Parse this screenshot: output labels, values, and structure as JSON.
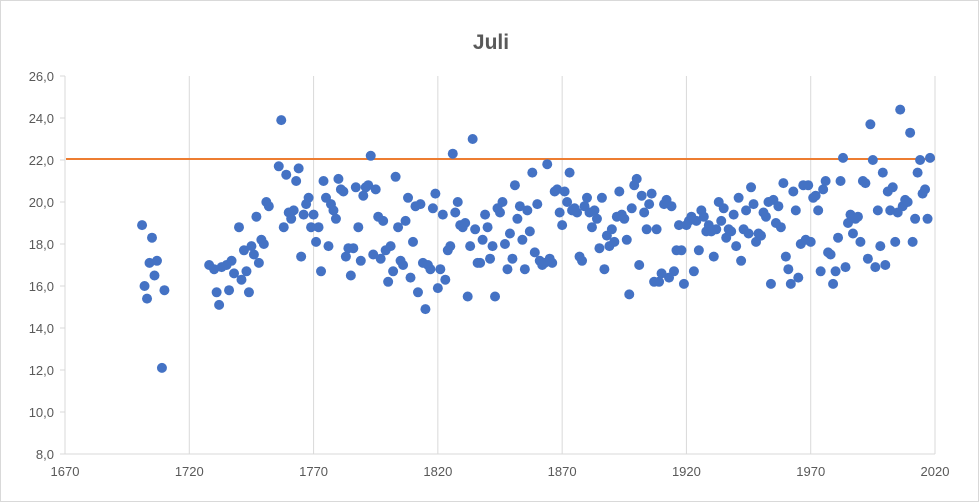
{
  "chart_data": {
    "type": "scatter",
    "title": "Juli",
    "xlabel": "",
    "ylabel": "",
    "xlim": [
      1670,
      2020
    ],
    "ylim": [
      8,
      26
    ],
    "x_ticks": [
      "1670",
      "1720",
      "1770",
      "1820",
      "1870",
      "1920",
      "1970",
      "2020"
    ],
    "y_ticks": [
      "8,0",
      "10,0",
      "12,0",
      "14,0",
      "16,0",
      "18,0",
      "20,0",
      "22,0",
      "24,0",
      "26,0"
    ],
    "grid": "vertical",
    "legend": "none",
    "colors": {
      "points": "#4472c4",
      "reference_line": "#ed7d31",
      "grid": "#d9d9d9",
      "text": "#595959"
    },
    "reference_line": {
      "y": 22.05
    },
    "series": [
      {
        "points": [
          [
            1701,
            18.9
          ],
          [
            1702,
            16.0
          ],
          [
            1703,
            15.4
          ],
          [
            1704,
            17.1
          ],
          [
            1705,
            18.3
          ],
          [
            1706,
            16.5
          ],
          [
            1707,
            17.2
          ],
          [
            1709,
            12.1
          ],
          [
            1710,
            15.8
          ],
          [
            1728,
            17.0
          ],
          [
            1730,
            16.8
          ],
          [
            1731,
            15.7
          ],
          [
            1732,
            15.1
          ],
          [
            1733,
            16.9
          ],
          [
            1735,
            17.0
          ],
          [
            1736,
            15.8
          ],
          [
            1737,
            17.2
          ],
          [
            1738,
            16.6
          ],
          [
            1740,
            18.8
          ],
          [
            1741,
            16.3
          ],
          [
            1742,
            17.7
          ],
          [
            1743,
            16.7
          ],
          [
            1744,
            15.7
          ],
          [
            1745,
            17.9
          ],
          [
            1746,
            17.5
          ],
          [
            1747,
            19.3
          ],
          [
            1748,
            17.1
          ],
          [
            1749,
            18.2
          ],
          [
            1750,
            18.0
          ],
          [
            1751,
            20.0
          ],
          [
            1752,
            19.8
          ],
          [
            1756,
            21.7
          ],
          [
            1757,
            23.9
          ],
          [
            1758,
            18.8
          ],
          [
            1759,
            21.3
          ],
          [
            1760,
            19.5
          ],
          [
            1761,
            19.2
          ],
          [
            1762,
            19.6
          ],
          [
            1763,
            21.0
          ],
          [
            1764,
            21.6
          ],
          [
            1765,
            17.4
          ],
          [
            1766,
            19.4
          ],
          [
            1767,
            19.9
          ],
          [
            1768,
            20.2
          ],
          [
            1769,
            18.8
          ],
          [
            1770,
            19.4
          ],
          [
            1771,
            18.1
          ],
          [
            1772,
            18.8
          ],
          [
            1773,
            16.7
          ],
          [
            1774,
            21.0
          ],
          [
            1775,
            20.2
          ],
          [
            1776,
            17.9
          ],
          [
            1777,
            19.9
          ],
          [
            1778,
            19.6
          ],
          [
            1779,
            19.2
          ],
          [
            1780,
            21.1
          ],
          [
            1781,
            20.6
          ],
          [
            1782,
            20.5
          ],
          [
            1783,
            17.4
          ],
          [
            1784,
            17.8
          ],
          [
            1785,
            16.5
          ],
          [
            1786,
            17.8
          ],
          [
            1787,
            20.7
          ],
          [
            1788,
            18.8
          ],
          [
            1789,
            17.2
          ],
          [
            1790,
            20.3
          ],
          [
            1791,
            20.7
          ],
          [
            1792,
            20.8
          ],
          [
            1793,
            22.2
          ],
          [
            1794,
            17.5
          ],
          [
            1795,
            20.6
          ],
          [
            1796,
            19.3
          ],
          [
            1797,
            17.3
          ],
          [
            1798,
            19.1
          ],
          [
            1799,
            17.7
          ],
          [
            1800,
            16.2
          ],
          [
            1801,
            17.9
          ],
          [
            1802,
            16.7
          ],
          [
            1803,
            21.2
          ],
          [
            1804,
            18.8
          ],
          [
            1805,
            17.2
          ],
          [
            1806,
            17.0
          ],
          [
            1807,
            19.1
          ],
          [
            1808,
            20.2
          ],
          [
            1809,
            16.4
          ],
          [
            1810,
            18.1
          ],
          [
            1811,
            19.8
          ],
          [
            1812,
            15.7
          ],
          [
            1813,
            19.9
          ],
          [
            1814,
            17.1
          ],
          [
            1815,
            14.9
          ],
          [
            1816,
            17.0
          ],
          [
            1817,
            16.8
          ],
          [
            1818,
            19.7
          ],
          [
            1819,
            20.4
          ],
          [
            1820,
            15.9
          ],
          [
            1821,
            16.8
          ],
          [
            1822,
            19.4
          ],
          [
            1823,
            16.3
          ],
          [
            1824,
            17.7
          ],
          [
            1825,
            17.9
          ],
          [
            1826,
            22.3
          ],
          [
            1827,
            19.5
          ],
          [
            1828,
            20.0
          ],
          [
            1829,
            18.9
          ],
          [
            1830,
            18.8
          ],
          [
            1831,
            19.0
          ],
          [
            1832,
            15.5
          ],
          [
            1833,
            17.9
          ],
          [
            1834,
            23.0
          ],
          [
            1835,
            18.7
          ],
          [
            1836,
            17.1
          ],
          [
            1837,
            17.1
          ],
          [
            1838,
            18.2
          ],
          [
            1839,
            19.4
          ],
          [
            1840,
            18.8
          ],
          [
            1841,
            17.3
          ],
          [
            1842,
            17.9
          ],
          [
            1843,
            15.5
          ],
          [
            1844,
            19.7
          ],
          [
            1845,
            19.5
          ],
          [
            1846,
            20.0
          ],
          [
            1847,
            18.0
          ],
          [
            1848,
            16.8
          ],
          [
            1849,
            18.5
          ],
          [
            1850,
            17.3
          ],
          [
            1851,
            20.8
          ],
          [
            1852,
            19.2
          ],
          [
            1853,
            19.8
          ],
          [
            1854,
            18.2
          ],
          [
            1855,
            16.8
          ],
          [
            1856,
            19.6
          ],
          [
            1857,
            18.6
          ],
          [
            1858,
            21.4
          ],
          [
            1859,
            17.6
          ],
          [
            1860,
            19.9
          ],
          [
            1861,
            17.2
          ],
          [
            1862,
            17.0
          ],
          [
            1863,
            17.1
          ],
          [
            1864,
            21.8
          ],
          [
            1865,
            17.3
          ],
          [
            1866,
            17.1
          ],
          [
            1867,
            20.5
          ],
          [
            1868,
            20.6
          ],
          [
            1869,
            19.5
          ],
          [
            1870,
            18.9
          ],
          [
            1871,
            20.5
          ],
          [
            1872,
            20.0
          ],
          [
            1873,
            21.4
          ],
          [
            1874,
            19.6
          ],
          [
            1875,
            19.7
          ],
          [
            1876,
            19.5
          ],
          [
            1877,
            17.4
          ],
          [
            1878,
            17.2
          ],
          [
            1879,
            19.8
          ],
          [
            1880,
            20.2
          ],
          [
            1881,
            19.5
          ],
          [
            1882,
            18.8
          ],
          [
            1883,
            19.6
          ],
          [
            1884,
            19.2
          ],
          [
            1885,
            17.8
          ],
          [
            1886,
            20.2
          ],
          [
            1887,
            16.8
          ],
          [
            1888,
            18.4
          ],
          [
            1889,
            17.9
          ],
          [
            1890,
            18.7
          ],
          [
            1891,
            18.1
          ],
          [
            1892,
            19.3
          ],
          [
            1893,
            20.5
          ],
          [
            1894,
            19.4
          ],
          [
            1895,
            19.2
          ],
          [
            1896,
            18.2
          ],
          [
            1897,
            15.6
          ],
          [
            1898,
            19.7
          ],
          [
            1899,
            20.8
          ],
          [
            1900,
            21.1
          ],
          [
            1901,
            17.0
          ],
          [
            1902,
            20.3
          ],
          [
            1903,
            19.5
          ],
          [
            1904,
            18.7
          ],
          [
            1905,
            19.9
          ],
          [
            1906,
            20.4
          ],
          [
            1907,
            16.2
          ],
          [
            1908,
            18.7
          ],
          [
            1909,
            16.2
          ],
          [
            1910,
            16.6
          ],
          [
            1911,
            19.9
          ],
          [
            1912,
            20.1
          ],
          [
            1913,
            16.4
          ],
          [
            1914,
            19.8
          ],
          [
            1915,
            16.7
          ],
          [
            1916,
            17.7
          ],
          [
            1917,
            18.9
          ],
          [
            1918,
            17.7
          ],
          [
            1919,
            16.1
          ],
          [
            1920,
            18.9
          ],
          [
            1921,
            19.1
          ],
          [
            1922,
            19.3
          ],
          [
            1923,
            16.7
          ],
          [
            1924,
            19.1
          ],
          [
            1925,
            17.7
          ],
          [
            1926,
            19.6
          ],
          [
            1927,
            19.3
          ],
          [
            1928,
            18.6
          ],
          [
            1929,
            18.9
          ],
          [
            1930,
            18.6
          ],
          [
            1931,
            17.4
          ],
          [
            1932,
            18.7
          ],
          [
            1933,
            20.0
          ],
          [
            1934,
            19.1
          ],
          [
            1935,
            19.7
          ],
          [
            1936,
            18.3
          ],
          [
            1937,
            18.7
          ],
          [
            1938,
            18.6
          ],
          [
            1939,
            19.4
          ],
          [
            1940,
            17.9
          ],
          [
            1941,
            20.2
          ],
          [
            1942,
            17.2
          ],
          [
            1943,
            18.7
          ],
          [
            1944,
            19.6
          ],
          [
            1945,
            18.5
          ],
          [
            1946,
            20.7
          ],
          [
            1947,
            19.9
          ],
          [
            1948,
            18.1
          ],
          [
            1949,
            18.5
          ],
          [
            1950,
            18.4
          ],
          [
            1951,
            19.5
          ],
          [
            1952,
            19.3
          ],
          [
            1953,
            20.0
          ],
          [
            1954,
            16.1
          ],
          [
            1955,
            20.1
          ],
          [
            1956,
            19.0
          ],
          [
            1957,
            19.8
          ],
          [
            1958,
            18.8
          ],
          [
            1959,
            20.9
          ],
          [
            1960,
            17.4
          ],
          [
            1961,
            16.8
          ],
          [
            1962,
            16.1
          ],
          [
            1963,
            20.5
          ],
          [
            1964,
            19.6
          ],
          [
            1965,
            16.4
          ],
          [
            1966,
            18.0
          ],
          [
            1967,
            20.8
          ],
          [
            1968,
            18.2
          ],
          [
            1969,
            20.8
          ],
          [
            1970,
            18.1
          ],
          [
            1971,
            20.2
          ],
          [
            1972,
            20.3
          ],
          [
            1973,
            19.6
          ],
          [
            1974,
            16.7
          ],
          [
            1975,
            20.6
          ],
          [
            1976,
            21.0
          ],
          [
            1977,
            17.6
          ],
          [
            1978,
            17.5
          ],
          [
            1979,
            16.1
          ],
          [
            1980,
            16.7
          ],
          [
            1981,
            18.3
          ],
          [
            1982,
            21.0
          ],
          [
            1983,
            22.1
          ],
          [
            1984,
            16.9
          ],
          [
            1985,
            19.0
          ],
          [
            1986,
            19.4
          ],
          [
            1987,
            18.5
          ],
          [
            1988,
            19.2
          ],
          [
            1989,
            19.3
          ],
          [
            1990,
            18.1
          ],
          [
            1991,
            21.0
          ],
          [
            1992,
            20.9
          ],
          [
            1993,
            17.3
          ],
          [
            1994,
            23.7
          ],
          [
            1995,
            22.0
          ],
          [
            1996,
            16.9
          ],
          [
            1997,
            19.6
          ],
          [
            1998,
            17.9
          ],
          [
            1999,
            21.4
          ],
          [
            2000,
            17.0
          ],
          [
            2001,
            20.5
          ],
          [
            2002,
            19.6
          ],
          [
            2003,
            20.7
          ],
          [
            2004,
            18.1
          ],
          [
            2005,
            19.5
          ],
          [
            2006,
            24.4
          ],
          [
            2007,
            19.8
          ],
          [
            2008,
            20.1
          ],
          [
            2009,
            20.0
          ],
          [
            2010,
            23.3
          ],
          [
            2011,
            18.1
          ],
          [
            2012,
            19.2
          ],
          [
            2013,
            21.4
          ],
          [
            2014,
            22.0
          ],
          [
            2015,
            20.4
          ],
          [
            2016,
            20.6
          ],
          [
            2017,
            19.2
          ],
          [
            2018,
            22.1
          ]
        ]
      }
    ]
  }
}
